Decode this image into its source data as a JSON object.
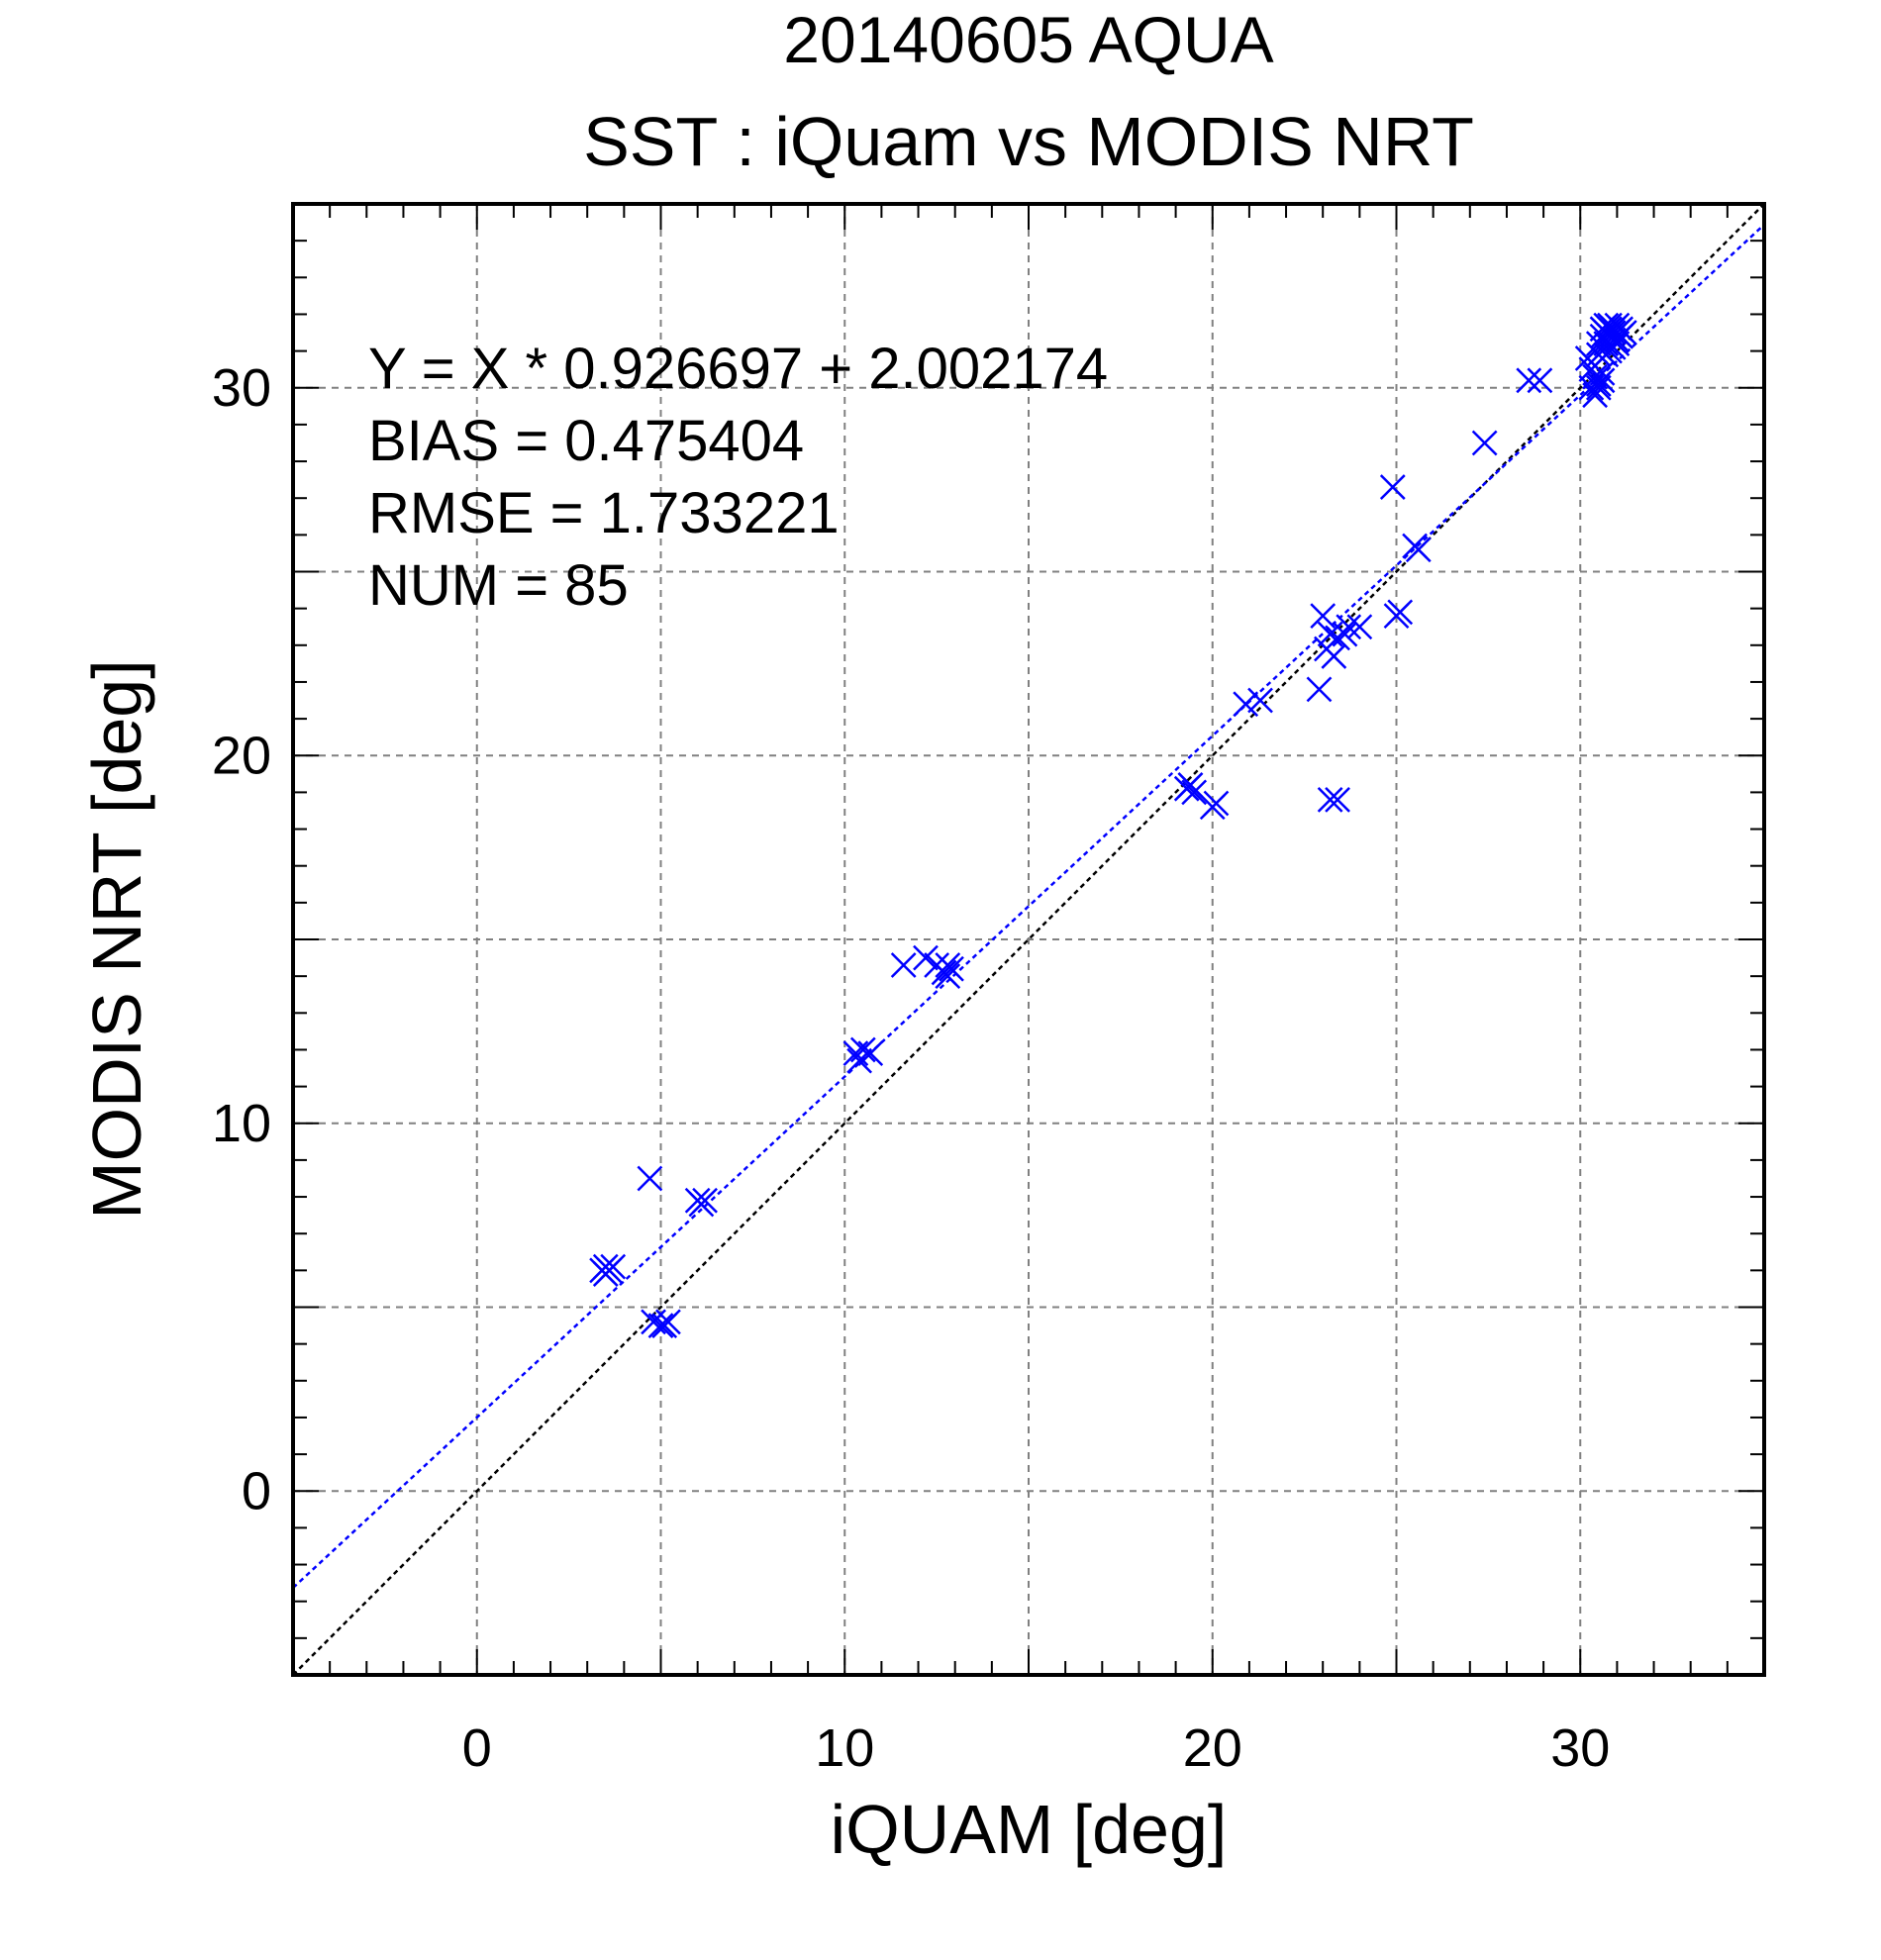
{
  "chart_data": {
    "type": "scatter",
    "date_title": "20140605 AQUA",
    "title": "SST : iQuam vs MODIS NRT",
    "xlabel": "iQUAM [deg]",
    "ylabel": "MODIS NRT [deg]",
    "xlim": [
      -5,
      35
    ],
    "ylim": [
      -5,
      35
    ],
    "xticks": [
      0,
      10,
      20,
      30
    ],
    "yticks": [
      0,
      10,
      20,
      30
    ],
    "grid": true,
    "grid_step": 5,
    "stats": [
      "Y = X * 0.926697 + 2.002174",
      "BIAS = 0.475404",
      "RMSE = 1.733221",
      "NUM = 85"
    ],
    "regression": {
      "slope": 0.926697,
      "intercept": 2.002174,
      "color": "#0000ff"
    },
    "one_to_one": {
      "slope": 1,
      "intercept": 0,
      "color": "#000000"
    },
    "marker_color": "#0000ff",
    "title_colors": {
      "date_title": "#808080",
      "title": "#000000"
    },
    "series": [
      {
        "x": [
          3.4,
          3.5,
          3.6,
          3.7,
          4.7,
          4.8,
          5.0,
          5.1,
          6.0,
          6.1,
          6.2,
          10.3,
          10.4,
          10.5,
          10.7,
          11.6,
          12.2,
          12.5,
          12.7,
          12.8,
          12.9,
          19.3,
          19.4,
          19.5,
          20.0,
          20.1,
          20.9,
          21.3,
          22.9,
          23.0,
          23.1,
          23.2,
          23.3,
          23.4,
          23.6,
          23.7,
          24.0,
          24.9,
          25.0,
          25.1,
          25.5,
          25.6,
          27.4,
          28.6,
          28.9,
          30.2,
          30.3,
          30.3,
          30.4,
          30.4,
          30.5,
          30.5,
          30.5,
          30.6,
          30.6,
          30.6,
          30.7,
          30.7,
          30.7,
          30.8,
          30.8,
          30.8,
          30.9,
          30.9,
          30.9,
          31.0,
          31.0,
          31.0,
          31.1,
          31.1,
          31.2,
          30.4,
          30.6,
          30.8,
          31.0,
          23.2,
          23.4,
          5.2,
          3.5,
          12.8,
          19.4,
          30.5,
          30.7,
          30.9,
          31.1
        ],
        "y": [
          6.0,
          5.9,
          6.0,
          6.1,
          8.5,
          4.6,
          4.5,
          4.5,
          7.9,
          7.8,
          7.9,
          11.9,
          11.7,
          12.0,
          11.9,
          14.3,
          14.5,
          14.3,
          14.1,
          14.0,
          14.2,
          19.1,
          19.2,
          19.0,
          18.6,
          18.7,
          21.4,
          21.5,
          21.8,
          23.8,
          22.9,
          23.3,
          22.7,
          23.2,
          23.3,
          23.5,
          23.5,
          27.3,
          23.8,
          23.9,
          25.7,
          25.6,
          28.5,
          30.2,
          30.2,
          30.8,
          30.0,
          30.5,
          29.8,
          30.3,
          30.9,
          31.2,
          30.1,
          31.6,
          31.4,
          30.4,
          31.7,
          30.9,
          31.5,
          31.4,
          31.6,
          31.0,
          31.6,
          31.3,
          31.1,
          31.5,
          31.7,
          31.2,
          31.4,
          31.6,
          31.5,
          30.6,
          30.2,
          31.7,
          31.3,
          18.8,
          18.8,
          4.6,
          6.1,
          14.3,
          19.2,
          30.0,
          31.2,
          31.5,
          31.4
        ]
      }
    ]
  }
}
